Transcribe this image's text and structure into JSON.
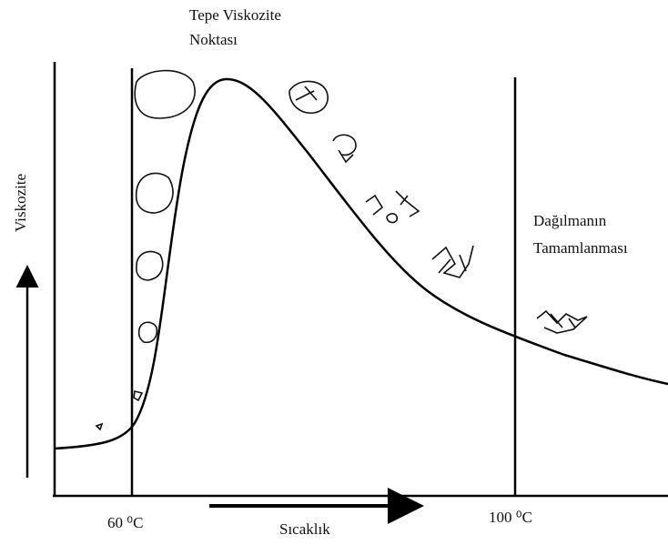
{
  "peak_label": [
    "Tepe Viskozite",
    "Noktası"
  ],
  "y_axis_label": "Viskozite",
  "x_axis_label": "Sıcaklık",
  "dispersion_label": [
    "Dağılmanın",
    "Tamamlanması"
  ],
  "markers": [
    "60 ⁰C",
    "100 ⁰C"
  ]
}
